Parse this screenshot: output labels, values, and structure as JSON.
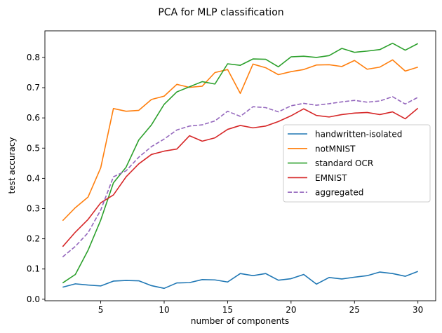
{
  "chart_data": {
    "type": "line",
    "title": "PCA for MLP classification",
    "xlabel": "number of components",
    "ylabel": "test accuracy",
    "xlim": [
      0.6,
      31.4
    ],
    "ylim": [
      -0.005,
      0.888
    ],
    "xticks": [
      5,
      10,
      15,
      20,
      25,
      30
    ],
    "yticks": [
      0.0,
      0.1,
      0.2,
      0.3,
      0.4,
      0.5,
      0.6,
      0.7,
      0.8
    ],
    "ytick_labels": [
      "0.0",
      "0.1",
      "0.2",
      "0.3",
      "0.4",
      "0.5",
      "0.6",
      "0.7",
      "0.8"
    ],
    "grid": false,
    "legend_position": "center-right",
    "x": [
      2,
      3,
      4,
      5,
      6,
      7,
      8,
      9,
      10,
      11,
      12,
      13,
      14,
      15,
      16,
      17,
      18,
      19,
      20,
      21,
      22,
      23,
      24,
      25,
      26,
      27,
      28,
      29,
      30
    ],
    "series": [
      {
        "name": "handwritten-isolated",
        "color": "#1f77b4",
        "dashed": false,
        "values": [
          0.04,
          0.051,
          0.047,
          0.044,
          0.06,
          0.062,
          0.061,
          0.045,
          0.036,
          0.054,
          0.055,
          0.065,
          0.064,
          0.057,
          0.085,
          0.078,
          0.085,
          0.063,
          0.068,
          0.082,
          0.05,
          0.072,
          0.067,
          0.073,
          0.078,
          0.09,
          0.085,
          0.076,
          0.092
        ]
      },
      {
        "name": "notMNIST",
        "color": "#ff7f0e",
        "dashed": false,
        "values": [
          0.26,
          0.303,
          0.338,
          0.435,
          0.631,
          0.622,
          0.625,
          0.661,
          0.672,
          0.711,
          0.701,
          0.705,
          0.75,
          0.76,
          0.681,
          0.778,
          0.766,
          0.743,
          0.753,
          0.76,
          0.775,
          0.776,
          0.77,
          0.79,
          0.761,
          0.768,
          0.792,
          0.755,
          0.768
        ]
      },
      {
        "name": "standard OCR",
        "color": "#2ca02c",
        "dashed": false,
        "values": [
          0.054,
          0.082,
          0.162,
          0.262,
          0.385,
          0.437,
          0.527,
          0.577,
          0.645,
          0.686,
          0.703,
          0.72,
          0.712,
          0.779,
          0.774,
          0.795,
          0.794,
          0.769,
          0.802,
          0.804,
          0.8,
          0.806,
          0.83,
          0.817,
          0.821,
          0.826,
          0.847,
          0.824,
          0.846
        ]
      },
      {
        "name": "EMNIST",
        "color": "#d62728",
        "dashed": false,
        "values": [
          0.174,
          0.222,
          0.264,
          0.319,
          0.345,
          0.405,
          0.448,
          0.479,
          0.49,
          0.497,
          0.541,
          0.523,
          0.534,
          0.562,
          0.575,
          0.567,
          0.573,
          0.588,
          0.607,
          0.63,
          0.608,
          0.603,
          0.611,
          0.616,
          0.618,
          0.611,
          0.62,
          0.597,
          0.632
        ]
      },
      {
        "name": "aggregated",
        "color": "#9467bd",
        "dashed": true,
        "values": [
          0.14,
          0.175,
          0.22,
          0.295,
          0.405,
          0.425,
          0.47,
          0.505,
          0.53,
          0.56,
          0.573,
          0.577,
          0.59,
          0.622,
          0.605,
          0.637,
          0.634,
          0.62,
          0.64,
          0.648,
          0.642,
          0.647,
          0.653,
          0.658,
          0.652,
          0.656,
          0.67,
          0.646,
          0.668
        ]
      }
    ]
  }
}
